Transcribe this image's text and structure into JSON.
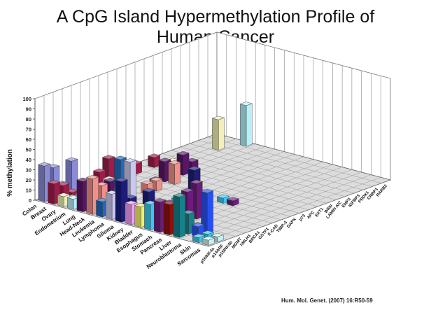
{
  "title_line1": "A CpG Island Hypermethylation Profile of",
  "title_line2": "Human Cancer",
  "citation": "Hum. Mol. Genet. (2007) 16:R50-59",
  "chart_data": {
    "type": "bar3d",
    "title": "A CpG Island Hypermethylation Profile of Human Cancer",
    "ylabel": "% methylation",
    "zlim": [
      0,
      100
    ],
    "z_ticks": [
      "0",
      "10",
      "20",
      "30",
      "40",
      "50",
      "60",
      "70",
      "80",
      "90",
      "100"
    ],
    "grid": true,
    "cancers": [
      "Colon",
      "Breast",
      "Ovary",
      "Endometrium",
      "Lung",
      "Head-Neck",
      "Leukemia",
      "Lymphoma",
      "Glioma",
      "Kidney",
      "Bladder",
      "Esophagus",
      "Stomach",
      "Pancreas",
      "Liver",
      "Neuroblastoma",
      "Skin",
      "Sarcomas"
    ],
    "genes": [
      "p16INK4a",
      "p14ARF",
      "p15INK4b",
      "MGMT",
      "hMLH1",
      "BRCA1",
      "GSTP1",
      "E-CAD",
      "TIMP-3",
      "DAPK",
      "p73",
      "APC",
      "EXT1",
      "WRN",
      "LAMIN A/C",
      "EMP3",
      "IGFBP3",
      "PRDX1",
      "CRBP1",
      "RARB2"
    ],
    "cancer_colors": [
      "#8a8ad8",
      "#a01a4a",
      "#f0f0b8",
      "#b8f0f8",
      "#5a1468",
      "#f09088",
      "#1e6ac0",
      "#c8c8f0",
      "#1c1c7c",
      "#f0a0f0",
      "#f0f068",
      "#3cc8f0",
      "#6c1c7c",
      "#8c1010",
      "#18808a",
      "#2850f0",
      "#38c8f0",
      "#c8f0f0"
    ],
    "values": [
      [
        35,
        30,
        10,
        30,
        0,
        0,
        0,
        0,
        5,
        0,
        0,
        0,
        0,
        0,
        0,
        0,
        0,
        0,
        0,
        0
      ],
      [
        20,
        15,
        5,
        0,
        0,
        15,
        25,
        0,
        5,
        10,
        0,
        10,
        0,
        0,
        0,
        0,
        0,
        0,
        0,
        0
      ],
      [
        10,
        5,
        5,
        0,
        0,
        10,
        5,
        0,
        0,
        0,
        0,
        0,
        5,
        0,
        0,
        0,
        0,
        30,
        0,
        0
      ],
      [
        10,
        5,
        0,
        0,
        0,
        0,
        0,
        0,
        0,
        0,
        0,
        0,
        0,
        0,
        0,
        0,
        0,
        0,
        0,
        40
      ],
      [
        30,
        20,
        15,
        20,
        0,
        0,
        0,
        0,
        5,
        20,
        0,
        20,
        10,
        0,
        0,
        0,
        0,
        0,
        0,
        0
      ],
      [
        35,
        25,
        10,
        15,
        0,
        0,
        10,
        10,
        0,
        20,
        0,
        0,
        0,
        0,
        0,
        0,
        0,
        0,
        0,
        0
      ],
      [
        15,
        5,
        50,
        0,
        0,
        0,
        0,
        0,
        0,
        0,
        0,
        0,
        0,
        0,
        0,
        0,
        0,
        0,
        0,
        0
      ],
      [
        25,
        10,
        50,
        0,
        0,
        0,
        0,
        0,
        0,
        0,
        0,
        0,
        0,
        0,
        0,
        0,
        0,
        0,
        0,
        0
      ],
      [
        40,
        20,
        0,
        20,
        0,
        0,
        0,
        0,
        25,
        0,
        0,
        0,
        0,
        0,
        0,
        0,
        0,
        0,
        0,
        0
      ],
      [
        20,
        10,
        0,
        5,
        0,
        0,
        0,
        0,
        5,
        0,
        0,
        0,
        0,
        0,
        0,
        0,
        0,
        0,
        0,
        0
      ],
      [
        20,
        10,
        0,
        5,
        0,
        0,
        0,
        0,
        0,
        0,
        0,
        0,
        0,
        0,
        0,
        0,
        0,
        0,
        0,
        0
      ],
      [
        25,
        15,
        10,
        20,
        5,
        0,
        0,
        0,
        5,
        0,
        0,
        0,
        0,
        0,
        0,
        0,
        0,
        0,
        0,
        0
      ],
      [
        30,
        25,
        0,
        30,
        35,
        0,
        0,
        0,
        5,
        0,
        0,
        0,
        0,
        0,
        0,
        0,
        0,
        0,
        0,
        0
      ],
      [
        30,
        10,
        5,
        0,
        0,
        0,
        0,
        0,
        0,
        0,
        0,
        0,
        0,
        0,
        0,
        0,
        0,
        0,
        0,
        0
      ],
      [
        40,
        20,
        5,
        0,
        0,
        0,
        0,
        0,
        0,
        0,
        0,
        0,
        0,
        0,
        0,
        0,
        0,
        0,
        0,
        0
      ],
      [
        0,
        10,
        40,
        0,
        0,
        0,
        0,
        0,
        0,
        0,
        0,
        0,
        0,
        0,
        0,
        0,
        0,
        0,
        0,
        0
      ],
      [
        5,
        5,
        0,
        0,
        0,
        0,
        0,
        0,
        0,
        0,
        0,
        0,
        0,
        0,
        0,
        0,
        0,
        0,
        0,
        0
      ],
      [
        5,
        5,
        0,
        0,
        0,
        0,
        0,
        0,
        0,
        0,
        0,
        0,
        0,
        0,
        0,
        0,
        0,
        0,
        0,
        0
      ]
    ]
  }
}
